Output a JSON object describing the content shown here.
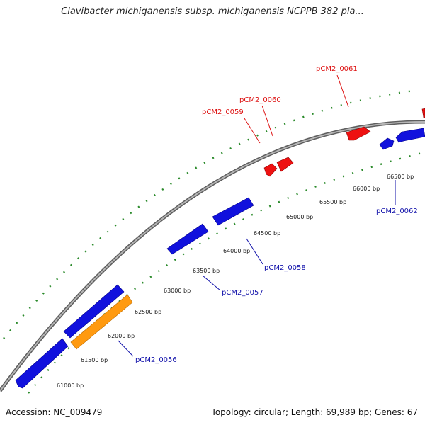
{
  "title": "Clavibacter michiganensis subsp. michiganensis NCPPB 382 pla...",
  "footer": {
    "accession": "Accession: NC_009479",
    "summary": "Topology: circular; Length: 69,989 bp; Genes: 67"
  },
  "colors": {
    "backbone": "#8a8a8a",
    "tick_marks": "#2a8a2a",
    "forward_gene": "#ee1111",
    "reverse_gene": "#1111dd",
    "highlight_gene": "#ff9a10",
    "forward_label": "#dd1111",
    "reverse_label": "#1111aa"
  },
  "ticks": [
    {
      "label": "61000 bp"
    },
    {
      "label": "61500 bp"
    },
    {
      "label": "62000 bp"
    },
    {
      "label": "62500 bp"
    },
    {
      "label": "63000 bp"
    },
    {
      "label": "63500 bp"
    },
    {
      "label": "64000 bp"
    },
    {
      "label": "64500 bp"
    },
    {
      "label": "65000 bp"
    },
    {
      "label": "65500 bp"
    },
    {
      "label": "66000 bp"
    },
    {
      "label": "66500 bp"
    }
  ],
  "gene_labels": [
    {
      "text": "pCM2_0056",
      "strand": "reverse"
    },
    {
      "text": "pCM2_0057",
      "strand": "reverse"
    },
    {
      "text": "pCM2_0058",
      "strand": "reverse"
    },
    {
      "text": "pCM2_0059",
      "strand": "forward"
    },
    {
      "text": "pCM2_0060",
      "strand": "forward"
    },
    {
      "text": "pCM2_0061",
      "strand": "forward"
    },
    {
      "text": "pCM2_0062",
      "strand": "reverse"
    }
  ]
}
